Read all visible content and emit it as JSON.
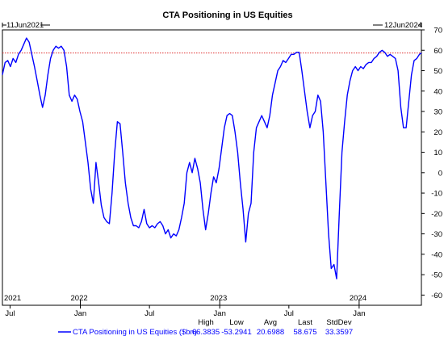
{
  "chart_data": {
    "type": "line",
    "title": "CTA Positioning in US Equities",
    "start_label": "11Jun2021",
    "end_label": "12Jun2024",
    "ylim": [
      -65,
      70
    ],
    "y_ticks": [
      70,
      60,
      50,
      40,
      30,
      20,
      10,
      0,
      -10,
      -20,
      -30,
      -40,
      -50,
      -60
    ],
    "year_labels": [
      {
        "label": "2021",
        "date": "2021-06-11"
      },
      {
        "label": "2022",
        "date": "2022-01-01"
      },
      {
        "label": "2023",
        "date": "2023-01-01"
      },
      {
        "label": "2024",
        "date": "2024-01-01"
      }
    ],
    "month_labels": [
      {
        "label": "Jul",
        "date": "2021-07-01"
      },
      {
        "label": "Jan",
        "date": "2022-01-01"
      },
      {
        "label": "Jul",
        "date": "2022-07-01"
      },
      {
        "label": "Jan",
        "date": "2023-01-01"
      },
      {
        "label": "Jul",
        "date": "2023-07-01"
      },
      {
        "label": "Jan",
        "date": "2024-01-01"
      }
    ],
    "reference_line": {
      "value": 58.675,
      "color": "#e03030",
      "style": "dotted"
    },
    "series": [
      {
        "name": "CTA Positioning in US Equities ($bn)",
        "color": "#0000ff",
        "points": [
          [
            "2021-06-11",
            48
          ],
          [
            "2021-06-18",
            54
          ],
          [
            "2021-06-25",
            55
          ],
          [
            "2021-07-02",
            52
          ],
          [
            "2021-07-09",
            56
          ],
          [
            "2021-07-16",
            54
          ],
          [
            "2021-07-23",
            58
          ],
          [
            "2021-07-30",
            60
          ],
          [
            "2021-08-06",
            63
          ],
          [
            "2021-08-13",
            66
          ],
          [
            "2021-08-20",
            64
          ],
          [
            "2021-08-27",
            58
          ],
          [
            "2021-09-03",
            52
          ],
          [
            "2021-09-10",
            45
          ],
          [
            "2021-09-17",
            38
          ],
          [
            "2021-09-24",
            32
          ],
          [
            "2021-10-01",
            38
          ],
          [
            "2021-10-08",
            48
          ],
          [
            "2021-10-15",
            56
          ],
          [
            "2021-10-22",
            60
          ],
          [
            "2021-10-29",
            62
          ],
          [
            "2021-11-05",
            61
          ],
          [
            "2021-11-12",
            62
          ],
          [
            "2021-11-19",
            60
          ],
          [
            "2021-11-26",
            52
          ],
          [
            "2021-12-03",
            38
          ],
          [
            "2021-12-10",
            35
          ],
          [
            "2021-12-17",
            38
          ],
          [
            "2021-12-24",
            36
          ],
          [
            "2021-12-31",
            30
          ],
          [
            "2022-01-07",
            25
          ],
          [
            "2022-01-14",
            15
          ],
          [
            "2022-01-21",
            5
          ],
          [
            "2022-01-28",
            -8
          ],
          [
            "2022-02-04",
            -15
          ],
          [
            "2022-02-11",
            5
          ],
          [
            "2022-02-18",
            -5
          ],
          [
            "2022-02-25",
            -16
          ],
          [
            "2022-03-04",
            -22
          ],
          [
            "2022-03-11",
            -24
          ],
          [
            "2022-03-18",
            -25
          ],
          [
            "2022-03-25",
            -10
          ],
          [
            "2022-04-01",
            10
          ],
          [
            "2022-04-08",
            25
          ],
          [
            "2022-04-15",
            24
          ],
          [
            "2022-04-22",
            10
          ],
          [
            "2022-04-29",
            -5
          ],
          [
            "2022-05-06",
            -15
          ],
          [
            "2022-05-13",
            -22
          ],
          [
            "2022-05-20",
            -26
          ],
          [
            "2022-05-27",
            -26
          ],
          [
            "2022-06-03",
            -27
          ],
          [
            "2022-06-10",
            -24
          ],
          [
            "2022-06-17",
            -18
          ],
          [
            "2022-06-24",
            -25
          ],
          [
            "2022-07-01",
            -27
          ],
          [
            "2022-07-08",
            -26
          ],
          [
            "2022-07-15",
            -27
          ],
          [
            "2022-07-22",
            -25
          ],
          [
            "2022-07-29",
            -24
          ],
          [
            "2022-08-05",
            -26
          ],
          [
            "2022-08-12",
            -30
          ],
          [
            "2022-08-19",
            -28
          ],
          [
            "2022-08-26",
            -32
          ],
          [
            "2022-09-02",
            -30
          ],
          [
            "2022-09-09",
            -31
          ],
          [
            "2022-09-16",
            -28
          ],
          [
            "2022-09-23",
            -22
          ],
          [
            "2022-09-30",
            -15
          ],
          [
            "2022-10-07",
            0
          ],
          [
            "2022-10-14",
            5
          ],
          [
            "2022-10-21",
            0
          ],
          [
            "2022-10-28",
            7
          ],
          [
            "2022-11-04",
            2
          ],
          [
            "2022-11-11",
            -5
          ],
          [
            "2022-11-18",
            -18
          ],
          [
            "2022-11-25",
            -28
          ],
          [
            "2022-12-02",
            -20
          ],
          [
            "2022-12-09",
            -10
          ],
          [
            "2022-12-16",
            -2
          ],
          [
            "2022-12-23",
            -5
          ],
          [
            "2022-12-30",
            2
          ],
          [
            "2023-01-06",
            12
          ],
          [
            "2023-01-13",
            22
          ],
          [
            "2023-01-20",
            28
          ],
          [
            "2023-01-27",
            29
          ],
          [
            "2023-02-03",
            28
          ],
          [
            "2023-02-10",
            20
          ],
          [
            "2023-02-17",
            10
          ],
          [
            "2023-02-24",
            -5
          ],
          [
            "2023-03-03",
            -18
          ],
          [
            "2023-03-10",
            -34
          ],
          [
            "2023-03-17",
            -20
          ],
          [
            "2023-03-24",
            -15
          ],
          [
            "2023-03-31",
            10
          ],
          [
            "2023-04-07",
            22
          ],
          [
            "2023-04-14",
            25
          ],
          [
            "2023-04-21",
            28
          ],
          [
            "2023-04-28",
            25
          ],
          [
            "2023-05-05",
            22
          ],
          [
            "2023-05-12",
            28
          ],
          [
            "2023-05-19",
            38
          ],
          [
            "2023-05-26",
            44
          ],
          [
            "2023-06-02",
            50
          ],
          [
            "2023-06-09",
            52
          ],
          [
            "2023-06-16",
            55
          ],
          [
            "2023-06-23",
            54
          ],
          [
            "2023-06-30",
            56
          ],
          [
            "2023-07-07",
            58
          ],
          [
            "2023-07-14",
            58
          ],
          [
            "2023-07-21",
            59
          ],
          [
            "2023-07-28",
            59
          ],
          [
            "2023-08-04",
            50
          ],
          [
            "2023-08-11",
            40
          ],
          [
            "2023-08-18",
            30
          ],
          [
            "2023-08-25",
            22
          ],
          [
            "2023-09-01",
            28
          ],
          [
            "2023-09-08",
            30
          ],
          [
            "2023-09-15",
            38
          ],
          [
            "2023-09-22",
            35
          ],
          [
            "2023-09-29",
            20
          ],
          [
            "2023-10-06",
            -5
          ],
          [
            "2023-10-13",
            -30
          ],
          [
            "2023-10-20",
            -47
          ],
          [
            "2023-10-27",
            -45
          ],
          [
            "2023-11-03",
            -52
          ],
          [
            "2023-11-10",
            -20
          ],
          [
            "2023-11-17",
            10
          ],
          [
            "2023-11-24",
            25
          ],
          [
            "2023-12-01",
            38
          ],
          [
            "2023-12-08",
            45
          ],
          [
            "2023-12-15",
            50
          ],
          [
            "2023-12-22",
            52
          ],
          [
            "2023-12-29",
            50
          ],
          [
            "2024-01-05",
            52
          ],
          [
            "2024-01-12",
            51
          ],
          [
            "2024-01-19",
            53
          ],
          [
            "2024-01-26",
            54
          ],
          [
            "2024-02-02",
            54
          ],
          [
            "2024-02-09",
            56
          ],
          [
            "2024-02-16",
            57
          ],
          [
            "2024-02-23",
            59
          ],
          [
            "2024-03-01",
            60
          ],
          [
            "2024-03-08",
            59
          ],
          [
            "2024-03-15",
            57
          ],
          [
            "2024-03-22",
            58
          ],
          [
            "2024-03-29",
            57
          ],
          [
            "2024-04-05",
            56
          ],
          [
            "2024-04-12",
            50
          ],
          [
            "2024-04-19",
            32
          ],
          [
            "2024-04-26",
            22
          ],
          [
            "2024-05-03",
            22
          ],
          [
            "2024-05-10",
            35
          ],
          [
            "2024-05-17",
            48
          ],
          [
            "2024-05-24",
            55
          ],
          [
            "2024-05-31",
            56
          ],
          [
            "2024-06-07",
            58
          ],
          [
            "2024-06-12",
            58.675
          ]
        ]
      }
    ],
    "stats": {
      "headers": [
        "High",
        "Low",
        "Avg",
        "Last",
        "StdDev"
      ],
      "values": [
        "66.3835",
        "-53.2941",
        "20.6988",
        "58.675",
        "33.3597"
      ]
    },
    "legend_label": "CTA Positioning in US Equities ($bn)"
  }
}
